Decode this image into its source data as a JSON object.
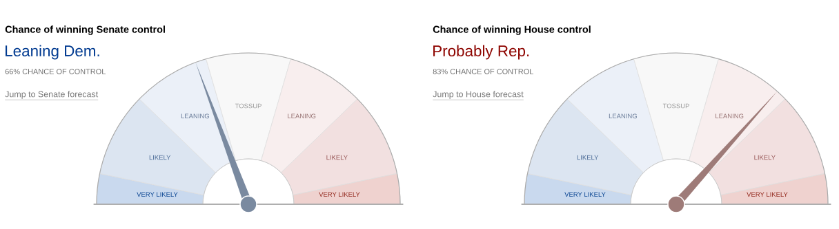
{
  "chart_data": [
    {
      "type": "donut",
      "title": "Chance of winning Senate control",
      "subtitle": "Leaning Dem.",
      "annotations": [
        "66% CHANCE OF CONTROL",
        "Jump to Senate forecast"
      ],
      "categories": [
        "VERY LIKELY",
        "LIKELY",
        "LEANING",
        "TOSSUP",
        "LEANING",
        "LIKELY",
        "VERY LIKELY"
      ],
      "values": [
        6.5,
        18,
        16.5,
        18,
        16.5,
        18,
        6.5
      ],
      "colors": [
        "#c9d9ee",
        "#dce5f1",
        "#ebf0f8",
        "#f8f8f8",
        "#f8eeee",
        "#f2e0e0",
        "#efd2cf"
      ],
      "needle": "LEANING",
      "color": "#7a8aa0"
    },
    {
      "type": "donut",
      "title": "Chance of winning House control",
      "subtitle": "Probably Rep.",
      "annotations": [
        "83% CHANCE OF CONTROL",
        "Jump to House forecast"
      ],
      "categories": [
        "VERY LIKELY",
        "LIKELY",
        "LEANING",
        "TOSSUP",
        "LEANING",
        "LIKELY",
        "VERY LIKELY"
      ],
      "values": [
        6.5,
        18,
        16.5,
        18,
        16.5,
        18,
        6.5
      ],
      "colors": [
        "#c9d9ee",
        "#dce5f1",
        "#ebf0f8",
        "#f8f8f8",
        "#f8eeee",
        "#f2e0e0",
        "#efd2cf"
      ],
      "needle": "LEANING",
      "color": "#9e7b78"
    }
  ]
}
